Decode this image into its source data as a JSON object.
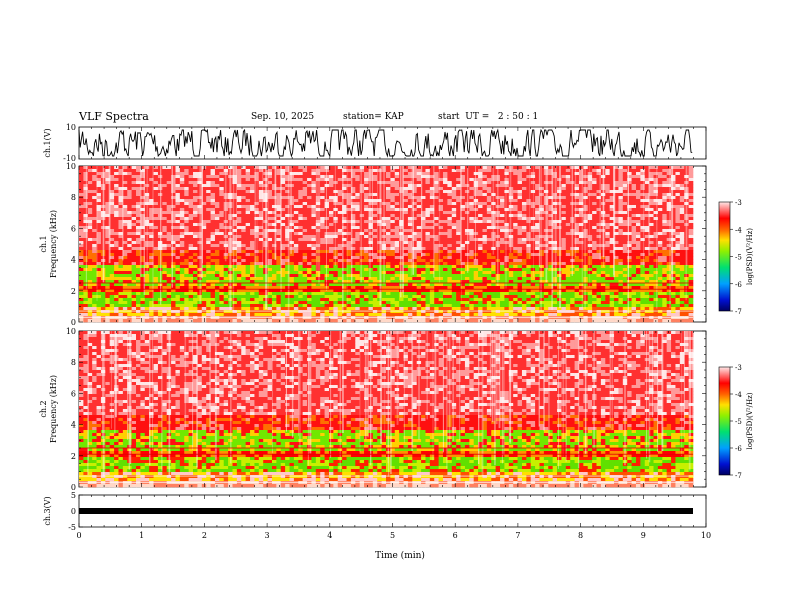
{
  "header": {
    "title": "VLF Spectra",
    "date": "Sep. 10, 2025",
    "station": "station= KAP",
    "start": "start  UT =   2 : 50 : 1"
  },
  "chart_data": [
    {
      "type": "line",
      "name": "ch1-waveform",
      "ylabel": "ch.1(V)",
      "ylim": [
        -10,
        10
      ],
      "ytick_labels": [
        "10",
        "-10"
      ],
      "xlim": [
        0,
        10
      ],
      "description_series": "ch.1 voltage"
    },
    {
      "type": "heatmap",
      "name": "ch1-spectrogram",
      "ylabel_line1": "ch.1",
      "ylabel_line2": "Frequency  (kHz)",
      "ylim": [
        0,
        10
      ],
      "ytick_values": [
        0,
        2,
        4,
        6,
        8,
        10
      ],
      "ytick_labels": [
        "0",
        "2",
        "4",
        "6",
        "8",
        "10"
      ],
      "xlim": [
        0,
        9.82
      ],
      "colorbar": {
        "label": "log(PSD)(V²/Hz)",
        "range": [
          -7,
          -3
        ],
        "tick_values": [
          -3,
          -4,
          -5,
          -6,
          -7
        ],
        "tick_labels": [
          "-3",
          "-4",
          "-5",
          "-6",
          "-7"
        ]
      }
    },
    {
      "type": "heatmap",
      "name": "ch2-spectrogram",
      "ylabel_line1": "ch.2",
      "ylabel_line2": "Frequency  (kHz)",
      "ylim": [
        0,
        10
      ],
      "ytick_values": [
        0,
        2,
        4,
        6,
        8,
        10
      ],
      "ytick_labels": [
        "0",
        "2",
        "4",
        "6",
        "8",
        "10"
      ],
      "xlim": [
        0,
        9.82
      ],
      "colorbar": {
        "label": "log(PSD)(V²/Hz)",
        "range": [
          -7,
          -3
        ],
        "tick_values": [
          -3,
          -4,
          -5,
          -6,
          -7
        ],
        "tick_labels": [
          "-3",
          "-4",
          "-5",
          "-6",
          "-7"
        ]
      }
    },
    {
      "type": "line",
      "name": "ch3-waveform",
      "ylabel": "ch.3(V)",
      "ylim": [
        -5,
        5
      ],
      "ytick_values": [
        5,
        0,
        -5
      ],
      "ytick_labels": [
        "5",
        "0",
        "-5"
      ],
      "xlim": [
        0,
        10
      ],
      "xlabel": "Time  (min)",
      "xtick_values": [
        0,
        1,
        2,
        3,
        4,
        5,
        6,
        7,
        8,
        9,
        10
      ],
      "xtick_labels": [
        "0",
        "1",
        "2",
        "3",
        "4",
        "5",
        "6",
        "7",
        "8",
        "9",
        "10"
      ]
    }
  ]
}
